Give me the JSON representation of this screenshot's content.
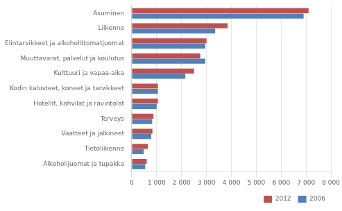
{
  "chart_data": {
    "type": "bar",
    "orientation": "horizontal",
    "categories": [
      "Asuminen",
      "Liikenne",
      "Elintarvikkeet ja alkoholittomatjuomat",
      "Muuttavarat, palvelut ja koulutus",
      "Kulttuuri ja vapaa-aika",
      "Kodin kalusteet, koneet ja tarvikkeet",
      "Hotellit, kahvilat ja ravintolat",
      "Terveys",
      "Vaatteet ja jalkineet",
      "Tietoliikenne",
      "Alkoholijuomat ja tupakka"
    ],
    "series": [
      {
        "name": "2012",
        "color": "#c0504d",
        "values": [
          7100,
          3850,
          3000,
          2750,
          2500,
          1050,
          1050,
          870,
          830,
          650,
          600
        ]
      },
      {
        "name": "2006",
        "color": "#4f81bd",
        "values": [
          6900,
          3350,
          2950,
          2950,
          2150,
          1050,
          1000,
          820,
          780,
          480,
          540
        ]
      }
    ],
    "xlim": [
      0,
      8000
    ],
    "xticks": [
      0,
      {
        "value": 1000,
        "label": "1 000"
      },
      {
        "value": 2000,
        "label": "2 000"
      },
      {
        "value": 3000,
        "label": "3 000"
      },
      {
        "value": 4000,
        "label": "4 000"
      },
      {
        "value": 5000,
        "label": "5 000"
      },
      {
        "value": 6000,
        "label": "6 000"
      },
      {
        "value": 7000,
        "label": "7 000"
      },
      {
        "value": 8000,
        "label": "8 000"
      }
    ],
    "grid": true,
    "legend": "lower right"
  }
}
